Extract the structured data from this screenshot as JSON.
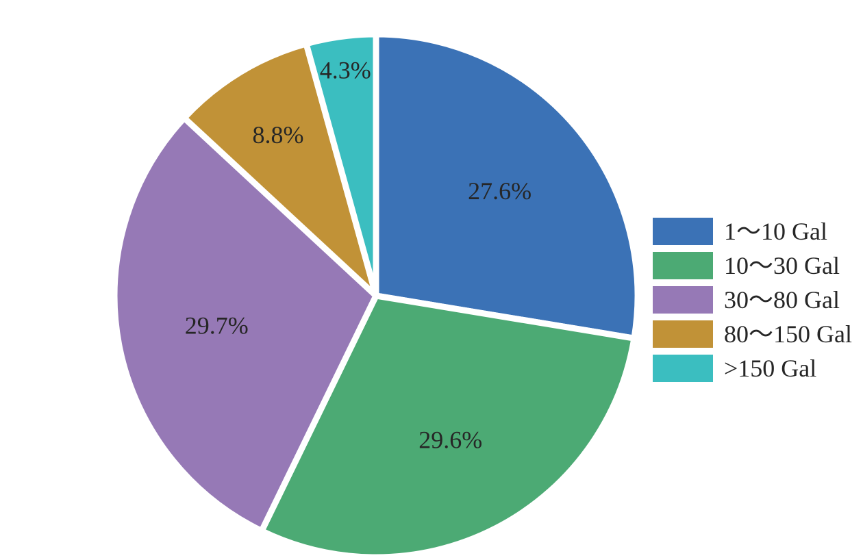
{
  "chart_data": {
    "type": "pie",
    "title": "",
    "legend_position": "right",
    "slices": [
      {
        "label": "1～10 Gal",
        "value": 27.6,
        "value_label": "27.6%",
        "color": "#3b72b6"
      },
      {
        "label": "10～30 Gal",
        "value": 29.6,
        "value_label": "29.6%",
        "color": "#4caa74"
      },
      {
        "label": "30～80 Gal",
        "value": 29.7,
        "value_label": "29.7%",
        "color": "#9679b6"
      },
      {
        "label": "80～150 Gal",
        "value": 8.8,
        "value_label": "8.8%",
        "color": "#c19237"
      },
      {
        "label": ">150 Gal",
        "value": 4.3,
        "value_label": "4.3%",
        "color": "#3bbec0"
      }
    ]
  }
}
